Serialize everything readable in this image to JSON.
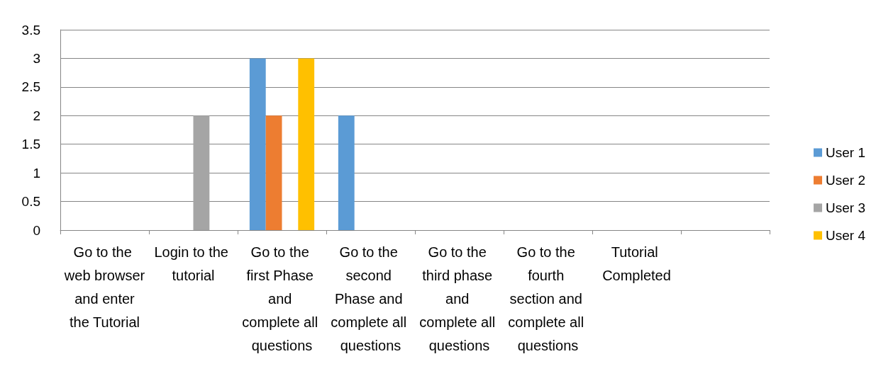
{
  "chart_data": {
    "type": "bar",
    "categories": [
      "Go to the web browser and enter the Tutorial",
      "Login to the tutorial",
      "Go to the first Phase and complete all questions",
      "Go to the second Phase and complete all questions",
      "Go to the third phase and complete all questions",
      "Go to the fourth section and complete all questions",
      "Tutorial Completed",
      null
    ],
    "series": [
      {
        "name": "User 1",
        "color": "#5b9bd5",
        "values": [
          0,
          0,
          3,
          2,
          0,
          0,
          0,
          0
        ]
      },
      {
        "name": "User 2",
        "color": "#ed7d31",
        "values": [
          0,
          0,
          2,
          0,
          0,
          0,
          0,
          0
        ]
      },
      {
        "name": "User 3",
        "color": "#a5a5a5",
        "values": [
          0,
          2,
          0,
          0,
          0,
          0,
          0,
          0
        ]
      },
      {
        "name": "User 4",
        "color": "#ffc000",
        "values": [
          0,
          0,
          3,
          0,
          0,
          0,
          0,
          0
        ]
      }
    ],
    "ylim": [
      0,
      3.5
    ],
    "yticks": [
      0,
      0.5,
      1,
      1.5,
      2,
      2.5,
      3,
      3.5
    ],
    "grid": "y",
    "legend": "right"
  }
}
